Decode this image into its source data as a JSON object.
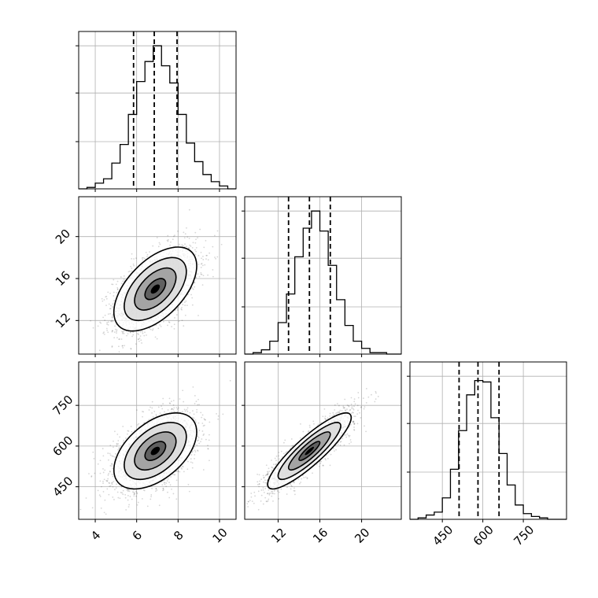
{
  "chart_data": {
    "type": "corner",
    "grid": true,
    "parameters": [
      {
        "index": 0,
        "range": [
          3.2,
          10.8
        ],
        "ticks": [
          4,
          6,
          8,
          10
        ],
        "tick_labels": [
          "4",
          "6",
          "8",
          "10"
        ],
        "quantiles": [
          5.85,
          6.85,
          7.95
        ]
      },
      {
        "index": 1,
        "range": [
          8.8,
          23.8
        ],
        "ticks": [
          12,
          16,
          20
        ],
        "tick_labels": [
          "12",
          "16",
          "20"
        ],
        "quantiles": [
          13.0,
          15.0,
          17.0
        ]
      },
      {
        "index": 2,
        "range": [
          330,
          910
        ],
        "ticks": [
          450,
          600,
          750
        ],
        "tick_labels": [
          "450",
          "600",
          "750"
        ],
        "quantiles": [
          512,
          582,
          660
        ]
      }
    ],
    "diagonal_histograms": [
      {
        "param": 0,
        "ylim": [
          0,
          1.1
        ],
        "bins": [
          {
            "x": [
              3.2,
              3.6
            ],
            "y": 0.0
          },
          {
            "x": [
              3.6,
              4.0
            ],
            "y": 0.01
          },
          {
            "x": [
              4.0,
              4.4
            ],
            "y": 0.04
          },
          {
            "x": [
              4.4,
              4.8
            ],
            "y": 0.07
          },
          {
            "x": [
              4.8,
              5.2
            ],
            "y": 0.18
          },
          {
            "x": [
              5.2,
              5.6
            ],
            "y": 0.31
          },
          {
            "x": [
              5.6,
              6.0
            ],
            "y": 0.52
          },
          {
            "x": [
              6.0,
              6.4
            ],
            "y": 0.75
          },
          {
            "x": [
              6.4,
              6.8
            ],
            "y": 0.89
          },
          {
            "x": [
              6.8,
              7.2
            ],
            "y": 1.0
          },
          {
            "x": [
              7.2,
              7.6
            ],
            "y": 0.86
          },
          {
            "x": [
              7.6,
              8.0
            ],
            "y": 0.74
          },
          {
            "x": [
              8.0,
              8.4
            ],
            "y": 0.52
          },
          {
            "x": [
              8.4,
              8.8
            ],
            "y": 0.32
          },
          {
            "x": [
              8.8,
              9.2
            ],
            "y": 0.19
          },
          {
            "x": [
              9.2,
              9.6
            ],
            "y": 0.1
          },
          {
            "x": [
              9.6,
              10.0
            ],
            "y": 0.05
          },
          {
            "x": [
              10.0,
              10.4
            ],
            "y": 0.02
          },
          {
            "x": [
              10.4,
              10.8
            ],
            "y": 0.0
          }
        ]
      },
      {
        "param": 1,
        "ylim": [
          0,
          1.1
        ],
        "bins": [
          {
            "x": [
              8.8,
              9.6
            ],
            "y": 0.0
          },
          {
            "x": [
              9.6,
              10.4
            ],
            "y": 0.01
          },
          {
            "x": [
              10.4,
              11.2
            ],
            "y": 0.03
          },
          {
            "x": [
              11.2,
              12.0
            ],
            "y": 0.09
          },
          {
            "x": [
              12.0,
              12.8
            ],
            "y": 0.22
          },
          {
            "x": [
              12.8,
              13.6
            ],
            "y": 0.42
          },
          {
            "x": [
              13.6,
              14.4
            ],
            "y": 0.68
          },
          {
            "x": [
              14.4,
              15.2
            ],
            "y": 0.88
          },
          {
            "x": [
              15.2,
              16.0
            ],
            "y": 1.0
          },
          {
            "x": [
              16.0,
              16.8
            ],
            "y": 0.86
          },
          {
            "x": [
              16.8,
              17.6
            ],
            "y": 0.62
          },
          {
            "x": [
              17.6,
              18.4
            ],
            "y": 0.38
          },
          {
            "x": [
              18.4,
              19.2
            ],
            "y": 0.2
          },
          {
            "x": [
              19.2,
              20.0
            ],
            "y": 0.09
          },
          {
            "x": [
              20.0,
              20.8
            ],
            "y": 0.04
          },
          {
            "x": [
              20.8,
              21.6
            ],
            "y": 0.01
          },
          {
            "x": [
              21.6,
              22.4
            ],
            "y": 0.01
          },
          {
            "x": [
              22.4,
              23.8
            ],
            "y": 0.0
          }
        ]
      },
      {
        "param": 2,
        "ylim": [
          0,
          1.1
        ],
        "bins": [
          {
            "x": [
              330,
              360
            ],
            "y": 0.0
          },
          {
            "x": [
              360,
              390
            ],
            "y": 0.01
          },
          {
            "x": [
              390,
              420
            ],
            "y": 0.03
          },
          {
            "x": [
              420,
              450
            ],
            "y": 0.05
          },
          {
            "x": [
              450,
              480
            ],
            "y": 0.15
          },
          {
            "x": [
              480,
              510
            ],
            "y": 0.35
          },
          {
            "x": [
              510,
              540
            ],
            "y": 0.62
          },
          {
            "x": [
              540,
              570
            ],
            "y": 0.87
          },
          {
            "x": [
              570,
              600
            ],
            "y": 0.97
          },
          {
            "x": [
              600,
              630
            ],
            "y": 0.96
          },
          {
            "x": [
              630,
              660
            ],
            "y": 0.71
          },
          {
            "x": [
              660,
              690
            ],
            "y": 0.46
          },
          {
            "x": [
              690,
              720
            ],
            "y": 0.24
          },
          {
            "x": [
              720,
              750
            ],
            "y": 0.1
          },
          {
            "x": [
              750,
              780
            ],
            "y": 0.04
          },
          {
            "x": [
              780,
              810
            ],
            "y": 0.02
          },
          {
            "x": [
              810,
              840
            ],
            "y": 0.01
          },
          {
            "x": [
              840,
              910
            ],
            "y": 0.0
          }
        ]
      }
    ],
    "scatter_panels": [
      {
        "x_param": 0,
        "y_param": 1,
        "mean": [
          6.9,
          15.0
        ],
        "std": [
          1.0,
          2.0
        ],
        "correlation": 0.55,
        "n_points": 2200
      },
      {
        "x_param": 0,
        "y_param": 2,
        "mean": [
          6.9,
          582
        ],
        "std": [
          1.0,
          70
        ],
        "correlation": 0.5,
        "n_points": 2200
      },
      {
        "x_param": 1,
        "y_param": 2,
        "mean": [
          15.0,
          582
        ],
        "std": [
          2.0,
          70
        ],
        "correlation": 0.88,
        "n_points": 2200
      }
    ],
    "contour_levels_sigma": [
      0.5,
      1.0,
      1.5,
      2.0
    ]
  }
}
